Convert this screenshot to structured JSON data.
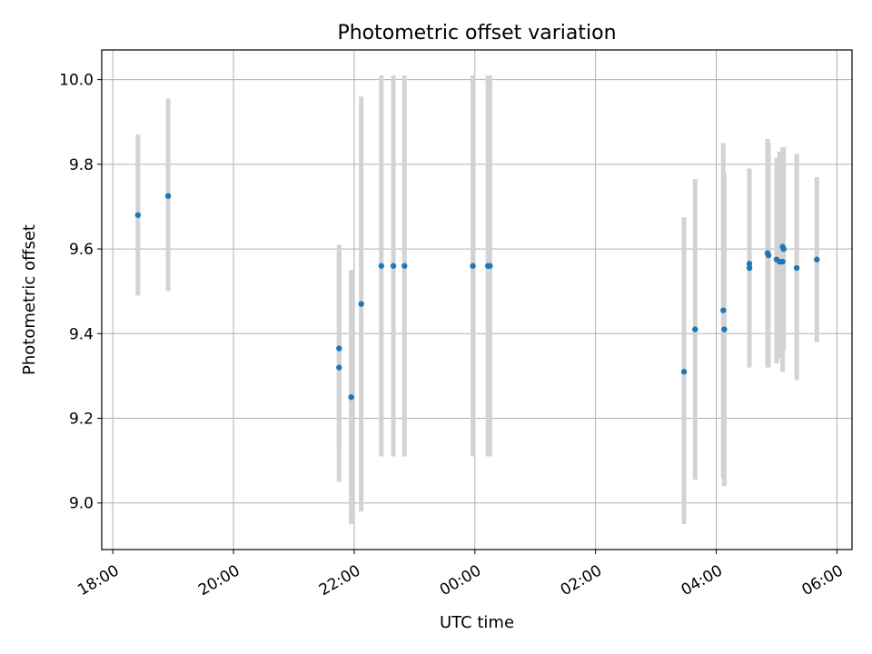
{
  "chart_data": {
    "type": "scatter",
    "title": "Photometric offset variation",
    "xlabel": "UTC time",
    "ylabel": "Photometric offset",
    "x_ticks": [
      "18:00",
      "20:00",
      "22:00",
      "00:00",
      "02:00",
      "04:00",
      "06:00"
    ],
    "y_ticks": [
      "9.0",
      "9.2",
      "9.4",
      "9.6",
      "9.8",
      "10.0"
    ],
    "xlim": [
      "2000-01-01T17:49",
      "2000-01-02T06:15"
    ],
    "ylim": [
      8.89,
      10.07
    ],
    "grid": true,
    "colors": {
      "marker": "#1f77b4",
      "errorbar": "#d3d3d3"
    },
    "points": [
      {
        "x": "2000-01-01T18:25",
        "y": 9.68,
        "ylow": 9.49,
        "yhigh": 9.87
      },
      {
        "x": "2000-01-01T18:55",
        "y": 9.725,
        "ylow": 9.5,
        "yhigh": 9.955
      },
      {
        "x": "2000-01-01T21:45",
        "y": 9.365,
        "ylow": 9.12,
        "yhigh": 9.61
      },
      {
        "x": "2000-01-01T21:45",
        "y": 9.32,
        "ylow": 9.05,
        "yhigh": 9.59
      },
      {
        "x": "2000-01-01T21:57",
        "y": 9.25,
        "ylow": 8.95,
        "yhigh": 9.55
      },
      {
        "x": "2000-01-01T22:07",
        "y": 9.47,
        "ylow": 8.98,
        "yhigh": 9.96
      },
      {
        "x": "2000-01-01T22:27",
        "y": 9.56,
        "ylow": 9.11,
        "yhigh": 10.01
      },
      {
        "x": "2000-01-01T22:39",
        "y": 9.56,
        "ylow": 9.11,
        "yhigh": 10.01
      },
      {
        "x": "2000-01-01T22:50",
        "y": 9.56,
        "ylow": 9.11,
        "yhigh": 10.01
      },
      {
        "x": "2000-01-01T23:58",
        "y": 9.56,
        "ylow": 9.11,
        "yhigh": 10.01
      },
      {
        "x": "2000-01-02T00:13",
        "y": 9.56,
        "ylow": 9.11,
        "yhigh": 10.01
      },
      {
        "x": "2000-01-02T00:15",
        "y": 9.56,
        "ylow": 9.11,
        "yhigh": 10.01
      },
      {
        "x": "2000-01-02T03:28",
        "y": 9.31,
        "ylow": 8.95,
        "yhigh": 9.675
      },
      {
        "x": "2000-01-02T03:39",
        "y": 9.41,
        "ylow": 9.055,
        "yhigh": 9.765
      },
      {
        "x": "2000-01-02T04:07",
        "y": 9.455,
        "ylow": 9.06,
        "yhigh": 9.85
      },
      {
        "x": "2000-01-02T04:08",
        "y": 9.41,
        "ylow": 9.04,
        "yhigh": 9.78
      },
      {
        "x": "2000-01-02T04:33",
        "y": 9.565,
        "ylow": 9.34,
        "yhigh": 9.79
      },
      {
        "x": "2000-01-02T04:33",
        "y": 9.555,
        "ylow": 9.32,
        "yhigh": 9.79
      },
      {
        "x": "2000-01-02T04:51",
        "y": 9.59,
        "ylow": 9.32,
        "yhigh": 9.86
      },
      {
        "x": "2000-01-02T04:52",
        "y": 9.585,
        "ylow": 9.32,
        "yhigh": 9.85
      },
      {
        "x": "2000-01-02T05:00",
        "y": 9.575,
        "ylow": 9.33,
        "yhigh": 9.815
      },
      {
        "x": "2000-01-02T05:03",
        "y": 9.57,
        "ylow": 9.34,
        "yhigh": 9.83
      },
      {
        "x": "2000-01-02T05:06",
        "y": 9.57,
        "ylow": 9.31,
        "yhigh": 9.835
      },
      {
        "x": "2000-01-02T05:06",
        "y": 9.605,
        "ylow": 9.36,
        "yhigh": 9.84
      },
      {
        "x": "2000-01-02T05:07",
        "y": 9.6,
        "ylow": 9.36,
        "yhigh": 9.84
      },
      {
        "x": "2000-01-02T05:20",
        "y": 9.555,
        "ylow": 9.29,
        "yhigh": 9.825
      },
      {
        "x": "2000-01-02T05:40",
        "y": 9.575,
        "ylow": 9.38,
        "yhigh": 9.77
      }
    ]
  }
}
